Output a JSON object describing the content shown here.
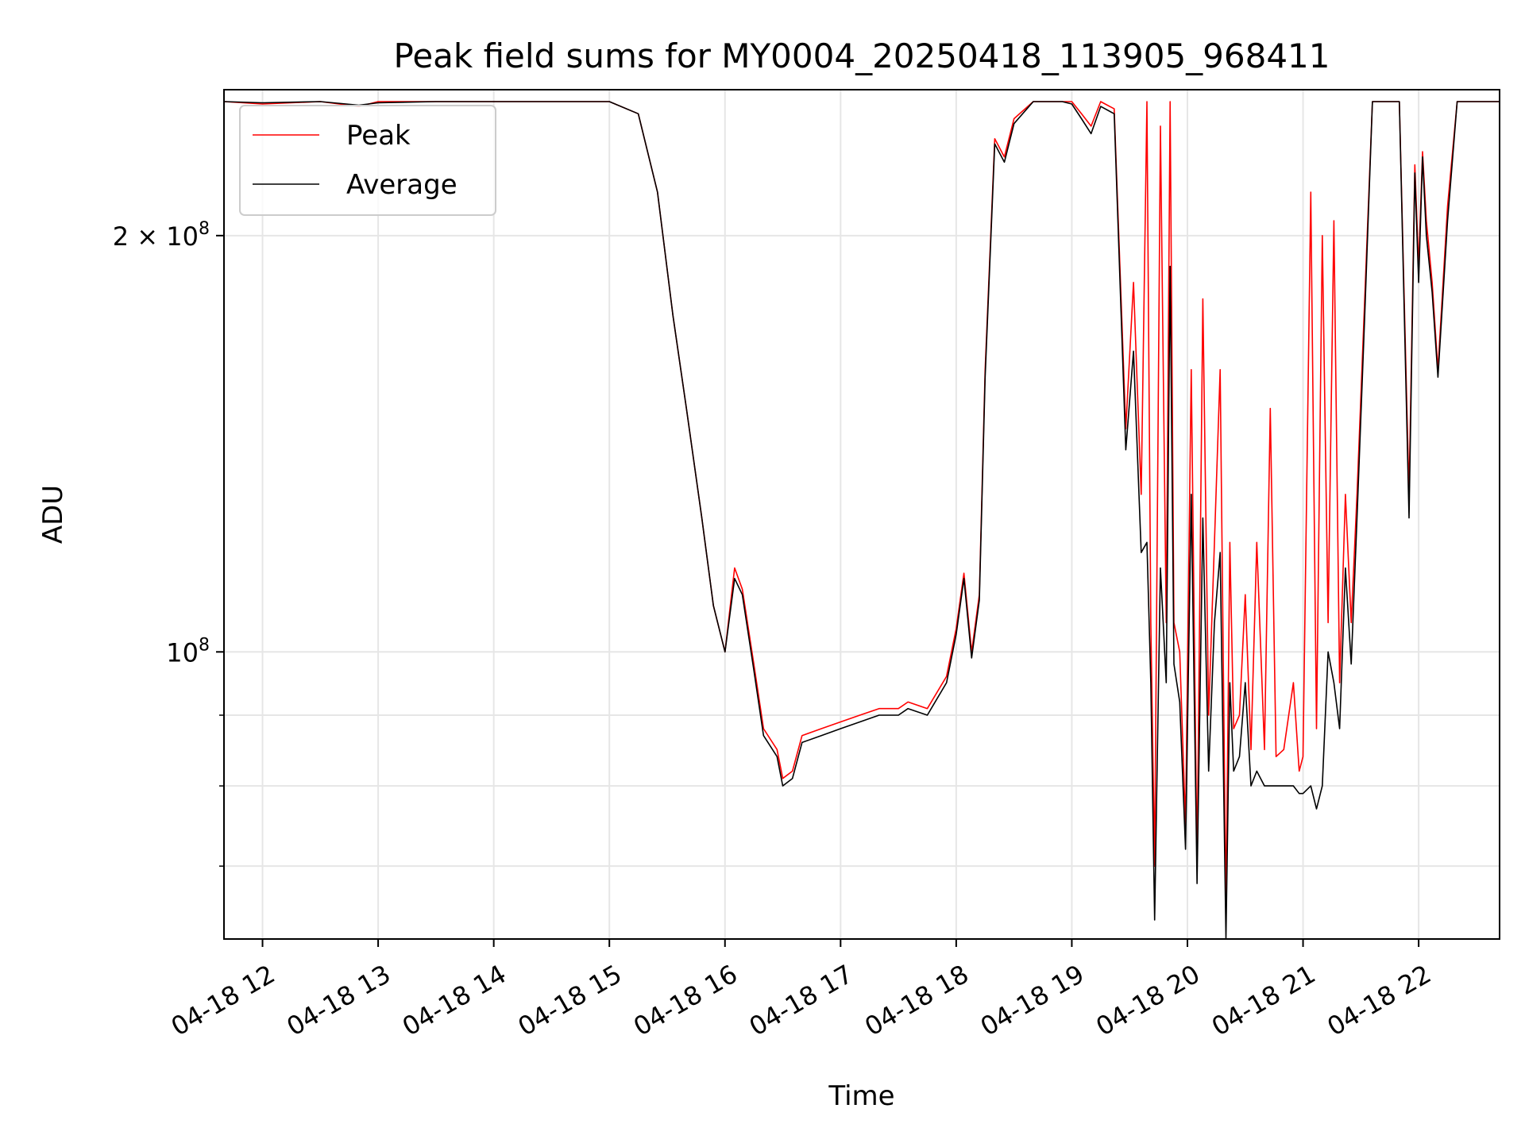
{
  "chart_data": {
    "type": "line",
    "title": "Peak field sums for MY0004_20250418_113905_968411",
    "xlabel": "Time",
    "ylabel": "ADU",
    "yscale": "log",
    "ylim": [
      62000000,
      255000000
    ],
    "xlim": [
      "2025-04-18 11:40",
      "2025-04-18 22:42"
    ],
    "x_ticks": [
      {
        "value": "2025-04-18 12:00",
        "label": "04-18 12"
      },
      {
        "value": "2025-04-18 13:00",
        "label": "04-18 13"
      },
      {
        "value": "2025-04-18 14:00",
        "label": "04-18 14"
      },
      {
        "value": "2025-04-18 15:00",
        "label": "04-18 15"
      },
      {
        "value": "2025-04-18 16:00",
        "label": "04-18 16"
      },
      {
        "value": "2025-04-18 17:00",
        "label": "04-18 17"
      },
      {
        "value": "2025-04-18 18:00",
        "label": "04-18 18"
      },
      {
        "value": "2025-04-18 19:00",
        "label": "04-18 19"
      },
      {
        "value": "2025-04-18 20:00",
        "label": "04-18 20"
      },
      {
        "value": "2025-04-18 21:00",
        "label": "04-18 21"
      },
      {
        "value": "2025-04-18 22:00",
        "label": "04-18 22"
      }
    ],
    "y_major_ticks": [
      {
        "value": 100000000,
        "label_base": "10",
        "label_exp": "8",
        "label_prefix": ""
      },
      {
        "value": 200000000,
        "label_base": "10",
        "label_exp": "8",
        "label_prefix": "2 × "
      }
    ],
    "y_minor_gridlines": [
      70000000,
      80000000,
      90000000
    ],
    "grid": true,
    "legend_position": "top-left",
    "series": [
      {
        "name": "Peak",
        "color": "#ff0000",
        "x": [
          "2025-04-18 11:40",
          "2025-04-18 12:00",
          "2025-04-18 12:30",
          "2025-04-18 12:50",
          "2025-04-18 13:00",
          "2025-04-18 13:30",
          "2025-04-18 14:00",
          "2025-04-18 14:30",
          "2025-04-18 15:00",
          "2025-04-18 15:15",
          "2025-04-18 15:25",
          "2025-04-18 15:33",
          "2025-04-18 15:40",
          "2025-04-18 15:48",
          "2025-04-18 15:54",
          "2025-04-18 16:00",
          "2025-04-18 16:05",
          "2025-04-18 16:09",
          "2025-04-18 16:15",
          "2025-04-18 16:20",
          "2025-04-18 16:27",
          "2025-04-18 16:30",
          "2025-04-18 16:35",
          "2025-04-18 16:40",
          "2025-04-18 16:50",
          "2025-04-18 17:00",
          "2025-04-18 17:10",
          "2025-04-18 17:20",
          "2025-04-18 17:30",
          "2025-04-18 17:35",
          "2025-04-18 17:45",
          "2025-04-18 17:55",
          "2025-04-18 18:00",
          "2025-04-18 18:04",
          "2025-04-18 18:08",
          "2025-04-18 18:12",
          "2025-04-18 18:15",
          "2025-04-18 18:20",
          "2025-04-18 18:25",
          "2025-04-18 18:30",
          "2025-04-18 18:40",
          "2025-04-18 18:55",
          "2025-04-18 19:00",
          "2025-04-18 19:05",
          "2025-04-18 19:10",
          "2025-04-18 19:15",
          "2025-04-18 19:22",
          "2025-04-18 19:28",
          "2025-04-18 19:32",
          "2025-04-18 19:36",
          "2025-04-18 19:39",
          "2025-04-18 19:41",
          "2025-04-18 19:43",
          "2025-04-18 19:46",
          "2025-04-18 19:49",
          "2025-04-18 19:51",
          "2025-04-18 19:53",
          "2025-04-18 19:56",
          "2025-04-18 19:59",
          "2025-04-18 20:02",
          "2025-04-18 20:05",
          "2025-04-18 20:08",
          "2025-04-18 20:11",
          "2025-04-18 20:14",
          "2025-04-18 20:17",
          "2025-04-18 20:20",
          "2025-04-18 20:22",
          "2025-04-18 20:24",
          "2025-04-18 20:27",
          "2025-04-18 20:30",
          "2025-04-18 20:33",
          "2025-04-18 20:36",
          "2025-04-18 20:40",
          "2025-04-18 20:43",
          "2025-04-18 20:46",
          "2025-04-18 20:50",
          "2025-04-18 20:55",
          "2025-04-18 20:58",
          "2025-04-18 21:00",
          "2025-04-18 21:04",
          "2025-04-18 21:07",
          "2025-04-18 21:10",
          "2025-04-18 21:13",
          "2025-04-18 21:16",
          "2025-04-18 21:19",
          "2025-04-18 21:22",
          "2025-04-18 21:25",
          "2025-04-18 21:28",
          "2025-04-18 21:32",
          "2025-04-18 21:36",
          "2025-04-18 21:40",
          "2025-04-18 21:50",
          "2025-04-18 21:55",
          "2025-04-18 21:58",
          "2025-04-18 22:00",
          "2025-04-18 22:02",
          "2025-04-18 22:04",
          "2025-04-18 22:07",
          "2025-04-18 22:10",
          "2025-04-18 22:15",
          "2025-04-18 22:20",
          "2025-04-18 22:23",
          "2025-04-18 22:26",
          "2025-04-18 22:30",
          "2025-04-18 22:35",
          "2025-04-18 22:42"
        ],
        "values": [
          250000000,
          249000000,
          250000000,
          248000000,
          250000000,
          250000000,
          250000000,
          250000000,
          250000000,
          245000000,
          215000000,
          175000000,
          150000000,
          125000000,
          108000000,
          100000000,
          115000000,
          111000000,
          98000000,
          88000000,
          85000000,
          81000000,
          82000000,
          87000000,
          88000000,
          89000000,
          90000000,
          91000000,
          91000000,
          92000000,
          91000000,
          96000000,
          104000000,
          114000000,
          100000000,
          110000000,
          160000000,
          235000000,
          228000000,
          243000000,
          250000000,
          250000000,
          250000000,
          245000000,
          240000000,
          250000000,
          247000000,
          145000000,
          185000000,
          130000000,
          250000000,
          105000000,
          70000000,
          240000000,
          105000000,
          250000000,
          105000000,
          100000000,
          75000000,
          160000000,
          70000000,
          180000000,
          90000000,
          120000000,
          160000000,
          65000000,
          120000000,
          88000000,
          90000000,
          110000000,
          85000000,
          120000000,
          85000000,
          150000000,
          84000000,
          85000000,
          95000000,
          82000000,
          84000000,
          215000000,
          88000000,
          200000000,
          105000000,
          205000000,
          95000000,
          130000000,
          105000000,
          130000000,
          180000000,
          250000000,
          250000000,
          250000000,
          130000000,
          225000000,
          190000000,
          230000000,
          205000000,
          185000000,
          160000000,
          210000000,
          250000000,
          250000000,
          250000000,
          250000000,
          250000000,
          250000000
        ]
      },
      {
        "name": "Average",
        "color": "#000000",
        "x": [
          "2025-04-18 11:40",
          "2025-04-18 12:00",
          "2025-04-18 12:30",
          "2025-04-18 12:50",
          "2025-04-18 13:00",
          "2025-04-18 13:30",
          "2025-04-18 14:00",
          "2025-04-18 14:30",
          "2025-04-18 15:00",
          "2025-04-18 15:15",
          "2025-04-18 15:25",
          "2025-04-18 15:33",
          "2025-04-18 15:40",
          "2025-04-18 15:48",
          "2025-04-18 15:54",
          "2025-04-18 16:00",
          "2025-04-18 16:05",
          "2025-04-18 16:09",
          "2025-04-18 16:15",
          "2025-04-18 16:20",
          "2025-04-18 16:27",
          "2025-04-18 16:30",
          "2025-04-18 16:35",
          "2025-04-18 16:40",
          "2025-04-18 16:50",
          "2025-04-18 17:00",
          "2025-04-18 17:10",
          "2025-04-18 17:20",
          "2025-04-18 17:30",
          "2025-04-18 17:35",
          "2025-04-18 17:45",
          "2025-04-18 17:55",
          "2025-04-18 18:00",
          "2025-04-18 18:04",
          "2025-04-18 18:08",
          "2025-04-18 18:12",
          "2025-04-18 18:15",
          "2025-04-18 18:20",
          "2025-04-18 18:25",
          "2025-04-18 18:30",
          "2025-04-18 18:40",
          "2025-04-18 18:55",
          "2025-04-18 19:00",
          "2025-04-18 19:05",
          "2025-04-18 19:10",
          "2025-04-18 19:15",
          "2025-04-18 19:22",
          "2025-04-18 19:28",
          "2025-04-18 19:32",
          "2025-04-18 19:36",
          "2025-04-18 19:39",
          "2025-04-18 19:41",
          "2025-04-18 19:43",
          "2025-04-18 19:46",
          "2025-04-18 19:49",
          "2025-04-18 19:51",
          "2025-04-18 19:53",
          "2025-04-18 19:56",
          "2025-04-18 19:59",
          "2025-04-18 20:02",
          "2025-04-18 20:05",
          "2025-04-18 20:08",
          "2025-04-18 20:11",
          "2025-04-18 20:14",
          "2025-04-18 20:17",
          "2025-04-18 20:20",
          "2025-04-18 20:22",
          "2025-04-18 20:24",
          "2025-04-18 20:27",
          "2025-04-18 20:30",
          "2025-04-18 20:33",
          "2025-04-18 20:36",
          "2025-04-18 20:40",
          "2025-04-18 20:43",
          "2025-04-18 20:46",
          "2025-04-18 20:50",
          "2025-04-18 20:55",
          "2025-04-18 20:58",
          "2025-04-18 21:00",
          "2025-04-18 21:04",
          "2025-04-18 21:07",
          "2025-04-18 21:10",
          "2025-04-18 21:13",
          "2025-04-18 21:16",
          "2025-04-18 21:19",
          "2025-04-18 21:22",
          "2025-04-18 21:25",
          "2025-04-18 21:28",
          "2025-04-18 21:32",
          "2025-04-18 21:36",
          "2025-04-18 21:40",
          "2025-04-18 21:50",
          "2025-04-18 21:55",
          "2025-04-18 21:58",
          "2025-04-18 22:00",
          "2025-04-18 22:02",
          "2025-04-18 22:04",
          "2025-04-18 22:07",
          "2025-04-18 22:10",
          "2025-04-18 22:15",
          "2025-04-18 22:20",
          "2025-04-18 22:23",
          "2025-04-18 22:26",
          "2025-04-18 22:30",
          "2025-04-18 22:35",
          "2025-04-18 22:42"
        ],
        "values": [
          250000000,
          249500000,
          250000000,
          248500000,
          249500000,
          250000000,
          250000000,
          250000000,
          250000000,
          245000000,
          215000000,
          175000000,
          150000000,
          125000000,
          108000000,
          100000000,
          113000000,
          110000000,
          97000000,
          87000000,
          84000000,
          80000000,
          81000000,
          86000000,
          87000000,
          88000000,
          89000000,
          90000000,
          90000000,
          91000000,
          90000000,
          95000000,
          103000000,
          113000000,
          99000000,
          109000000,
          158000000,
          233000000,
          226000000,
          241000000,
          250000000,
          250000000,
          249000000,
          243000000,
          237000000,
          248000000,
          245000000,
          140000000,
          165000000,
          118000000,
          120000000,
          95000000,
          64000000,
          115000000,
          95000000,
          190000000,
          98000000,
          92000000,
          72000000,
          130000000,
          68000000,
          125000000,
          82000000,
          105000000,
          118000000,
          62000000,
          95000000,
          82000000,
          84000000,
          95000000,
          80000000,
          82000000,
          80000000,
          80000000,
          80000000,
          80000000,
          80000000,
          79000000,
          79000000,
          80000000,
          77000000,
          80000000,
          100000000,
          95000000,
          88000000,
          115000000,
          98000000,
          125000000,
          175000000,
          250000000,
          250000000,
          250000000,
          125000000,
          222000000,
          185000000,
          228000000,
          200000000,
          182000000,
          158000000,
          205000000,
          250000000,
          250000000,
          250000000,
          250000000,
          250000000,
          250000000
        ]
      }
    ]
  }
}
